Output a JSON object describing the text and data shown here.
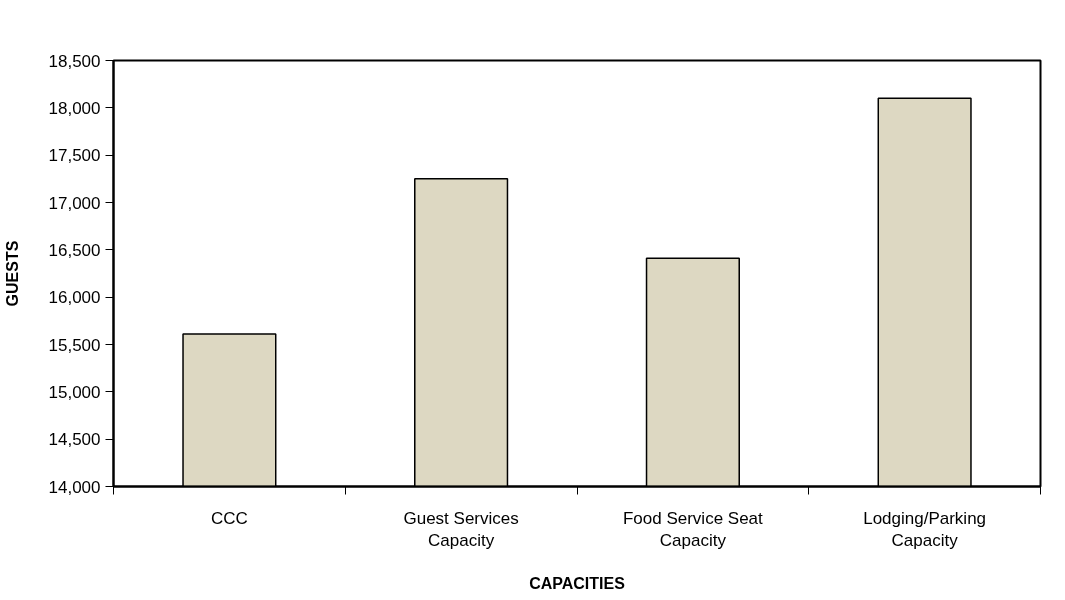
{
  "chart_data": {
    "type": "bar",
    "xlabel": "CAPACITIES",
    "ylabel": "GUESTS",
    "categories": [
      "CCC",
      "Guest Services Capacity",
      "Food Service Seat Capacity",
      "Lodging/Parking Capacity"
    ],
    "values": [
      15610,
      17250,
      16410,
      18100
    ],
    "color": "#ddd8c2",
    "ylim": [
      14000,
      18500
    ],
    "yticks": [
      {
        "value": 14000,
        "label": "14,000"
      },
      {
        "value": 14500,
        "label": "14,500"
      },
      {
        "value": 15000,
        "label": "15,000"
      },
      {
        "value": 15500,
        "label": "15,500"
      },
      {
        "value": 16000,
        "label": "16,000"
      },
      {
        "value": 16500,
        "label": "16,500"
      },
      {
        "value": 17000,
        "label": "17,000"
      },
      {
        "value": 17500,
        "label": "17,500"
      },
      {
        "value": 18000,
        "label": "18,000"
      },
      {
        "value": 18500,
        "label": "18,500"
      }
    ],
    "grid": false
  }
}
